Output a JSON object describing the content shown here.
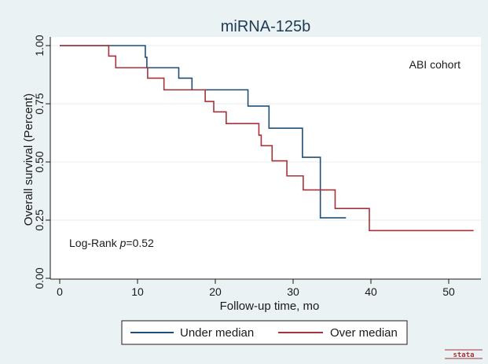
{
  "chart_data": {
    "type": "line",
    "subtype": "kaplan-meier-step",
    "title": "miRNA-125b",
    "xlabel": "Follow-up time, mo",
    "ylabel": "Overall survival (Percent)",
    "xlim": [
      0,
      54
    ],
    "ylim": [
      0,
      1
    ],
    "x_ticks": [
      0,
      10,
      20,
      30,
      40,
      50
    ],
    "x_tick_labels": [
      "0",
      "10",
      "20",
      "30",
      "40",
      "50"
    ],
    "y_ticks": [
      0,
      0.25,
      0.5,
      0.75,
      1
    ],
    "y_tick_labels": [
      "0.00",
      "0.25",
      "0.50",
      "0.75",
      "1.00"
    ],
    "grid": "horizontal",
    "legend_position": "bottom",
    "annotations": {
      "cohort": "ABI cohort",
      "logrank_prefix": "Log-Rank ",
      "logrank_p": "p",
      "logrank_value": "=0.52"
    },
    "series": [
      {
        "name": "Under median",
        "color": "#1f4e79",
        "steps": [
          [
            0,
            1.0
          ],
          [
            11.0,
            0.95
          ],
          [
            11.2,
            0.905
          ],
          [
            15.3,
            0.86
          ],
          [
            17.0,
            0.81
          ],
          [
            24.2,
            0.74
          ],
          [
            26.9,
            0.645
          ],
          [
            31.2,
            0.52
          ],
          [
            33.5,
            0.26
          ],
          [
            36.8,
            0.26
          ]
        ]
      },
      {
        "name": "Over median",
        "color": "#a8323a",
        "steps": [
          [
            0,
            1.0
          ],
          [
            6.3,
            0.955
          ],
          [
            7.2,
            0.905
          ],
          [
            11.3,
            0.86
          ],
          [
            13.4,
            0.81
          ],
          [
            18.7,
            0.76
          ],
          [
            19.8,
            0.715
          ],
          [
            21.4,
            0.665
          ],
          [
            25.6,
            0.615
          ],
          [
            25.9,
            0.57
          ],
          [
            27.3,
            0.505
          ],
          [
            29.2,
            0.44
          ],
          [
            31.3,
            0.38
          ],
          [
            35.4,
            0.3
          ],
          [
            39.8,
            0.205
          ],
          [
            53.2,
            0.205
          ]
        ]
      }
    ],
    "legend": [
      "Under median",
      "Over median"
    ]
  },
  "watermark": "stata"
}
